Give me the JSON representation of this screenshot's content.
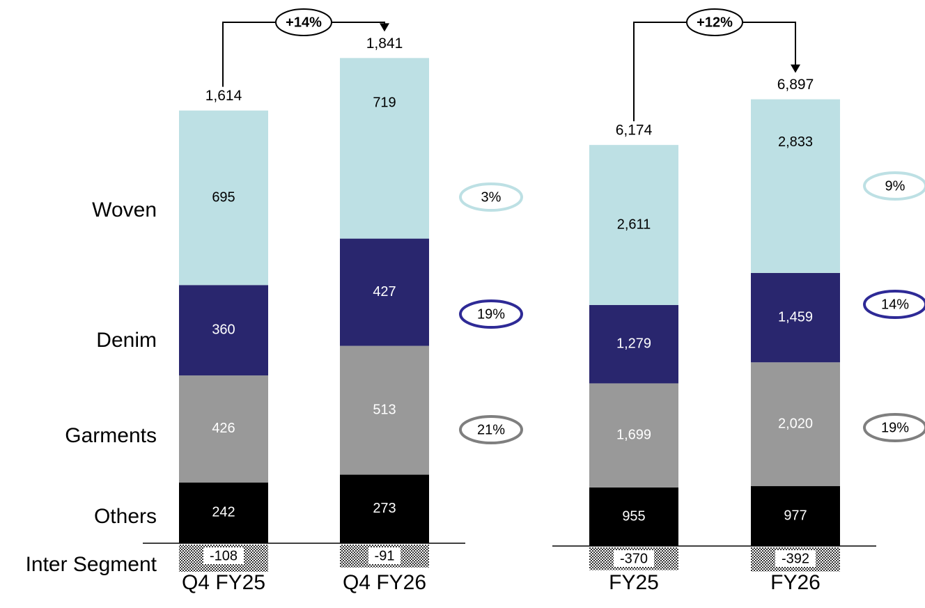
{
  "chart_data": {
    "type": "bar",
    "stacked": true,
    "row_labels": [
      "Woven",
      "Denim",
      "Garments",
      "Others",
      "Inter Segment"
    ],
    "groups": [
      {
        "categories": [
          "Q4 FY25",
          "Q4 FY26"
        ],
        "totals": [
          "1,614",
          "1,841"
        ],
        "growth": "+14%",
        "series": [
          {
            "name": "Others",
            "values": [
              242,
              273
            ],
            "labels": [
              "242",
              "273"
            ]
          },
          {
            "name": "Garments",
            "values": [
              426,
              513
            ],
            "labels": [
              "426",
              "513"
            ]
          },
          {
            "name": "Denim",
            "values": [
              360,
              427
            ],
            "labels": [
              "360",
              "427"
            ]
          },
          {
            "name": "Woven",
            "values": [
              695,
              719
            ],
            "labels": [
              "695",
              "719"
            ]
          },
          {
            "name": "Inter Segment",
            "values": [
              -108,
              -91
            ],
            "labels": [
              "-108",
              "-91"
            ]
          }
        ],
        "segment_growth": [
          {
            "series": "Woven",
            "label": "3%"
          },
          {
            "series": "Denim",
            "label": "19%"
          },
          {
            "series": "Garments",
            "label": "21%"
          }
        ]
      },
      {
        "categories": [
          "FY25",
          "FY26"
        ],
        "totals": [
          "6,174",
          "6,897"
        ],
        "growth": "+12%",
        "series": [
          {
            "name": "Others",
            "values": [
              955,
              977
            ],
            "labels": [
              "955",
              "977"
            ]
          },
          {
            "name": "Garments",
            "values": [
              1699,
              2020
            ],
            "labels": [
              "1,699",
              "2,020"
            ]
          },
          {
            "name": "Denim",
            "values": [
              1279,
              1459
            ],
            "labels": [
              "1,279",
              "1,459"
            ]
          },
          {
            "name": "Woven",
            "values": [
              2611,
              2833
            ],
            "labels": [
              "2,611",
              "2,833"
            ]
          },
          {
            "name": "Inter Segment",
            "values": [
              -370,
              -392
            ],
            "labels": [
              "-370",
              "-392"
            ]
          }
        ],
        "segment_growth": [
          {
            "series": "Woven",
            "label": "9%"
          },
          {
            "series": "Denim",
            "label": "14%"
          },
          {
            "series": "Garments",
            "label": "19%"
          }
        ]
      }
    ],
    "colors": {
      "Woven": "#bde0e4",
      "Denim": "#29266e",
      "Garments": "#999999",
      "Others": "#000000"
    }
  }
}
